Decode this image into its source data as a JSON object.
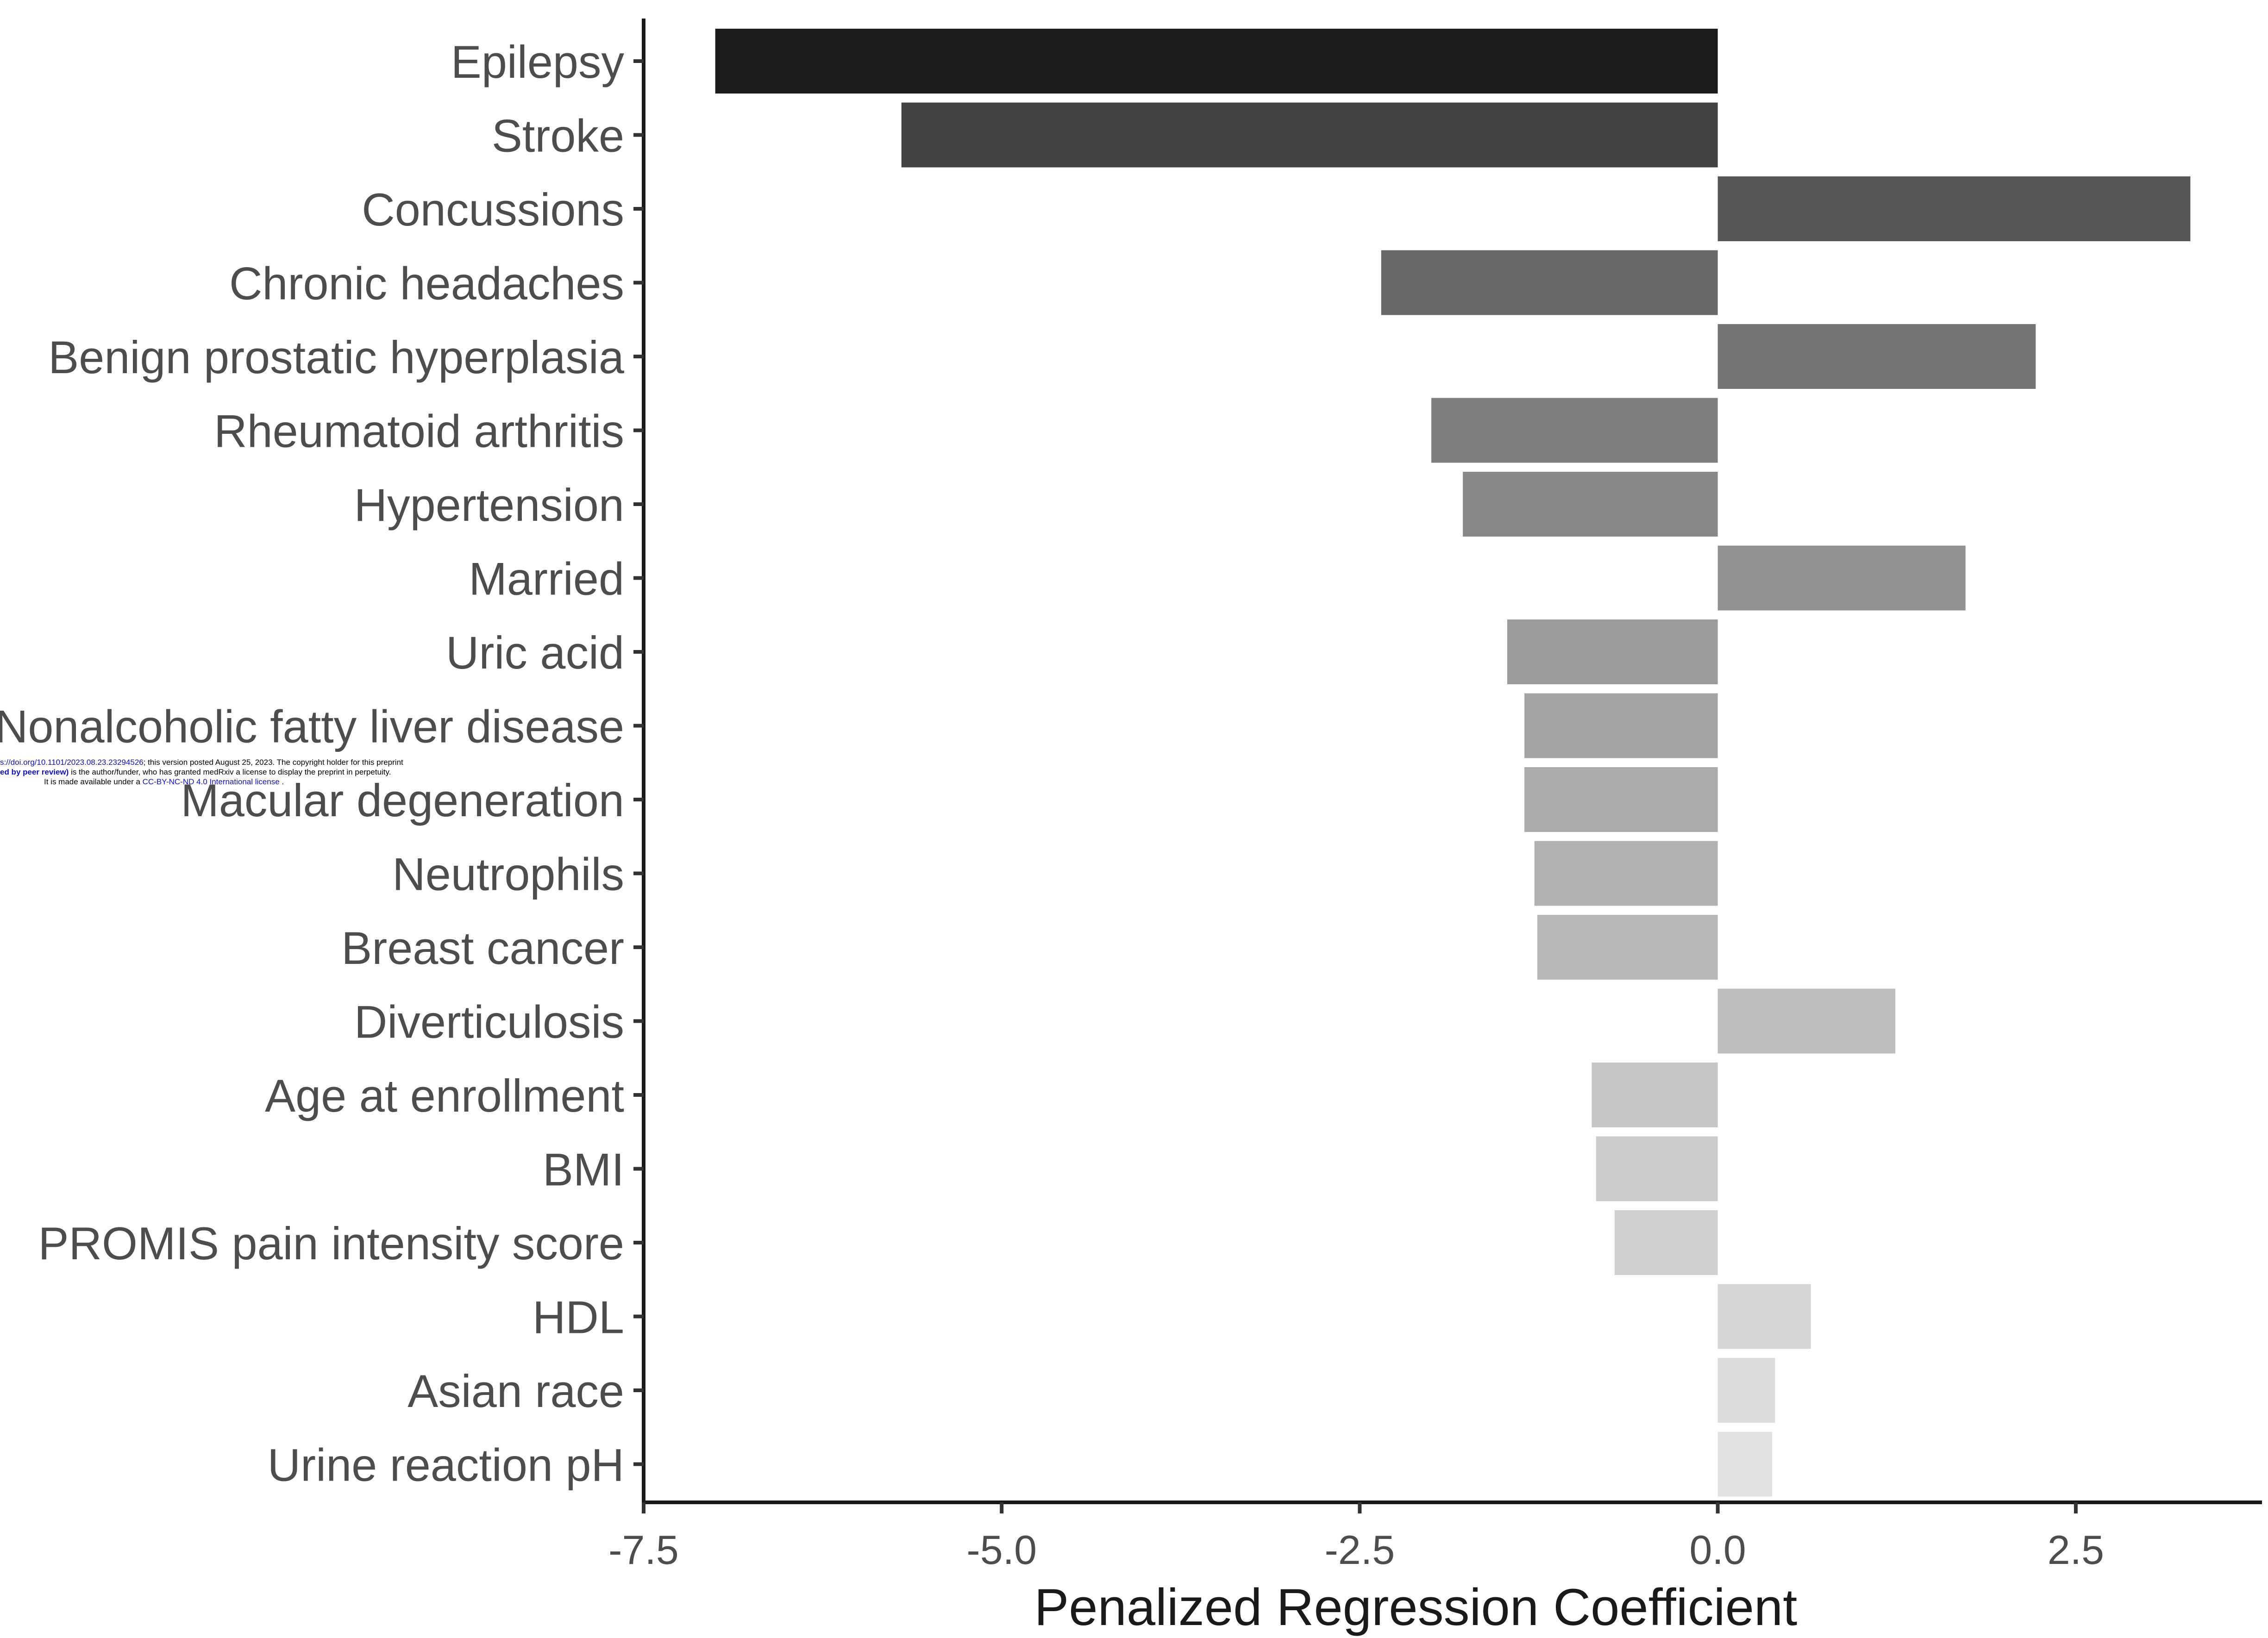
{
  "chart_data": {
    "type": "bar",
    "orientation": "horizontal",
    "title": "",
    "xlabel": "Penalized Regression Coefficient",
    "ylabel": "",
    "xlim": [
      -7.5,
      3.8
    ],
    "xticks": [
      -7.5,
      -5.0,
      -2.5,
      0.0,
      2.5
    ],
    "xtick_labels": [
      "-7.5",
      "-5.0",
      "-2.5",
      "0.0",
      "2.5"
    ],
    "grid": false,
    "legend": "none",
    "categories": [
      "Epilepsy",
      "Stroke",
      "Concussions",
      "Chronic headaches",
      "Benign prostatic hyperplasia",
      "Rheumatoid arthritis",
      "Hypertension",
      "Married",
      "Uric acid",
      "Nonalcoholic fatty liver disease",
      "Macular degeneration",
      "Neutrophils",
      "Breast cancer",
      "Diverticulosis",
      "Age at enrollment",
      "BMI",
      "PROMIS pain intensity score",
      "HDL",
      "Asian race",
      "Urine reaction pH"
    ],
    "values": [
      -7.0,
      -5.7,
      3.3,
      -2.35,
      2.22,
      -2.0,
      -1.78,
      1.73,
      -1.47,
      -1.35,
      -1.35,
      -1.28,
      -1.26,
      1.24,
      -0.88,
      -0.85,
      -0.72,
      0.65,
      0.4,
      0.38
    ],
    "colors": [
      "#1c1c1c",
      "#424242",
      "#565656",
      "#686868",
      "#757575",
      "#7e7e7e",
      "#888888",
      "#929292",
      "#9c9c9c",
      "#a4a4a4",
      "#ababab",
      "#b1b1b1",
      "#b8b8b8",
      "#bdbdbd",
      "#c6c6c6",
      "#cbcbcb",
      "#d0d0d0",
      "#d6d6d6",
      "#dcdcdc",
      "#e2e2e2"
    ]
  },
  "preprint_notice": {
    "line1_link": "s://doi.org/10.1101/2023.08.23.23294526",
    "line1_text": "; this version posted August 25, 2023. The copyright holder for this preprint",
    "line2_bold": "ed by peer review)",
    "line2_text": " is the author/funder, who has granted medRxiv a license to display the preprint in perpetuity.",
    "line3_text": "It is made available under a ",
    "line3_link": "CC-BY-NC-ND 4.0 International license",
    "line3_end": " ."
  }
}
